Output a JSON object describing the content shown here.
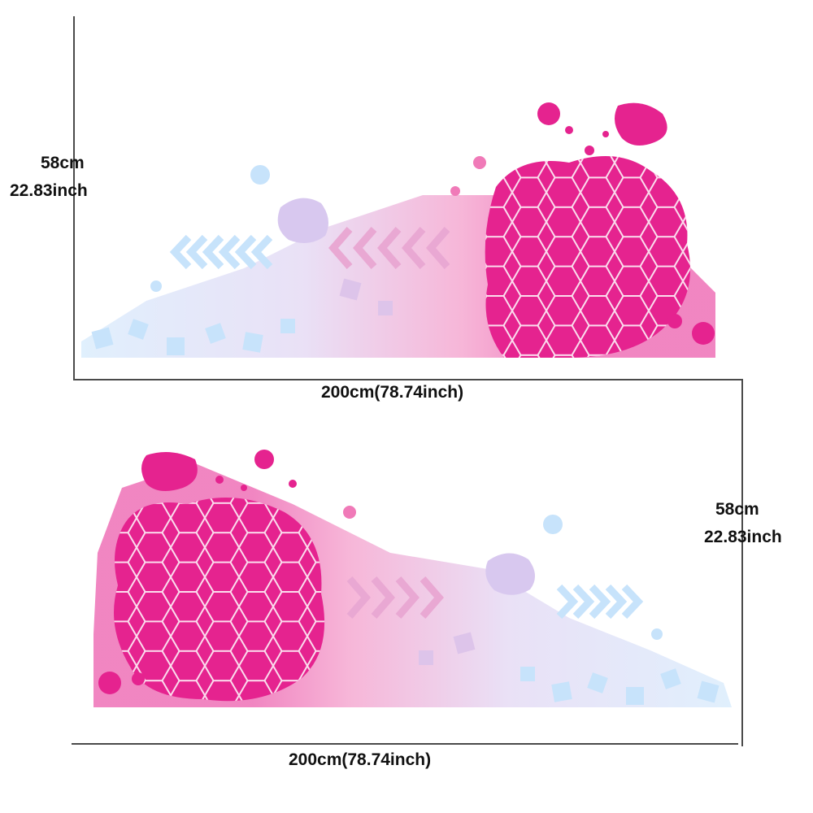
{
  "top_decal": {
    "height_cm": "58cm",
    "height_inch": "22.83inch",
    "width_label": "200cm(78.74inch)"
  },
  "bottom_decal": {
    "height_cm": "58cm",
    "height_inch": "22.83inch",
    "width_label": "200cm(78.74inch)"
  },
  "colors": {
    "magenta": "#e5238f",
    "pink": "#f07ab8",
    "lavender": "#d8c8ef",
    "light_blue": "#c7e3fb",
    "dimension_line": "#4a4a4a"
  }
}
